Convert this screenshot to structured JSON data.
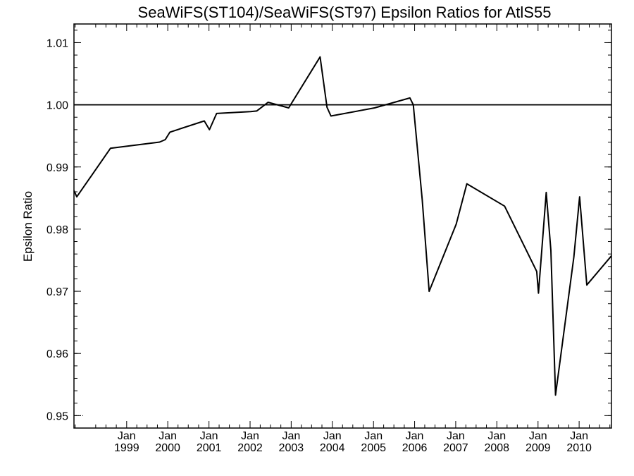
{
  "chart_data": {
    "type": "line",
    "title": "SeaWiFS(ST104)/SeaWiFS(ST97)  Epsilon Ratios for AtlS55",
    "xlabel": "",
    "ylabel": "Epsilon Ratio",
    "ylim": [
      0.948,
      1.013
    ],
    "xlim": [
      "1997-09-20",
      "2010-10-15"
    ],
    "y_ticks": [
      "0.95",
      "0.96",
      "0.97",
      "0.98",
      "0.99",
      "1.00",
      "1.01"
    ],
    "y_tick_values": [
      0.95,
      0.96,
      0.97,
      0.98,
      0.99,
      1.0,
      1.01
    ],
    "x_ticks": [
      {
        "month": "Jan",
        "year": "1999",
        "date": "1999-01-01"
      },
      {
        "month": "Jan",
        "year": "2000",
        "date": "2000-01-01"
      },
      {
        "month": "Jan",
        "year": "2001",
        "date": "2001-01-01"
      },
      {
        "month": "Jan",
        "year": "2002",
        "date": "2002-01-01"
      },
      {
        "month": "Jan",
        "year": "2003",
        "date": "2003-01-01"
      },
      {
        "month": "Jan",
        "year": "2004",
        "date": "2004-01-01"
      },
      {
        "month": "Jan",
        "year": "2005",
        "date": "2005-01-01"
      },
      {
        "month": "Jan",
        "year": "2006",
        "date": "2006-01-01"
      },
      {
        "month": "Jan",
        "year": "2007",
        "date": "2007-01-01"
      },
      {
        "month": "Jan",
        "year": "2008",
        "date": "2008-01-01"
      },
      {
        "month": "Jan",
        "year": "2009",
        "date": "2009-01-01"
      },
      {
        "month": "Jan",
        "year": "2010",
        "date": "2010-01-01"
      }
    ],
    "reference_line": 1.0,
    "grid": false,
    "series": [
      {
        "color": "#000000",
        "x": [
          "1997-09-20",
          "1997-10-15",
          "1998-08-10",
          "1999-10-20",
          "1999-12-10",
          "2000-01-20",
          "2000-11-20",
          "2001-01-05",
          "2001-03-10",
          "2002-01-05",
          "2002-03-01",
          "2002-06-10",
          "2002-12-10",
          "2003-09-15",
          "2003-11-15",
          "2003-12-20",
          "2005-01-10",
          "2005-11-20",
          "2005-12-20",
          "2006-03-10",
          "2006-05-10",
          "2007-01-05",
          "2007-04-10",
          "2008-03-10",
          "2008-12-20",
          "2009-01-05",
          "2009-03-15",
          "2009-04-25",
          "2009-06-05",
          "2009-11-15",
          "2010-01-05",
          "2010-03-10",
          "2010-10-15"
        ],
        "values": [
          0.9862,
          0.9852,
          0.993,
          0.994,
          0.9944,
          0.9956,
          0.9974,
          0.996,
          0.9986,
          0.9989,
          0.999,
          1.0004,
          0.9995,
          1.0077,
          0.9996,
          0.9982,
          0.9995,
          1.0011,
          1.0,
          0.9847,
          0.97,
          0.9808,
          0.9873,
          0.9837,
          0.9732,
          0.9697,
          0.9859,
          0.9766,
          0.9533,
          0.9755,
          0.9852,
          0.971,
          0.9757
        ]
      }
    ]
  }
}
